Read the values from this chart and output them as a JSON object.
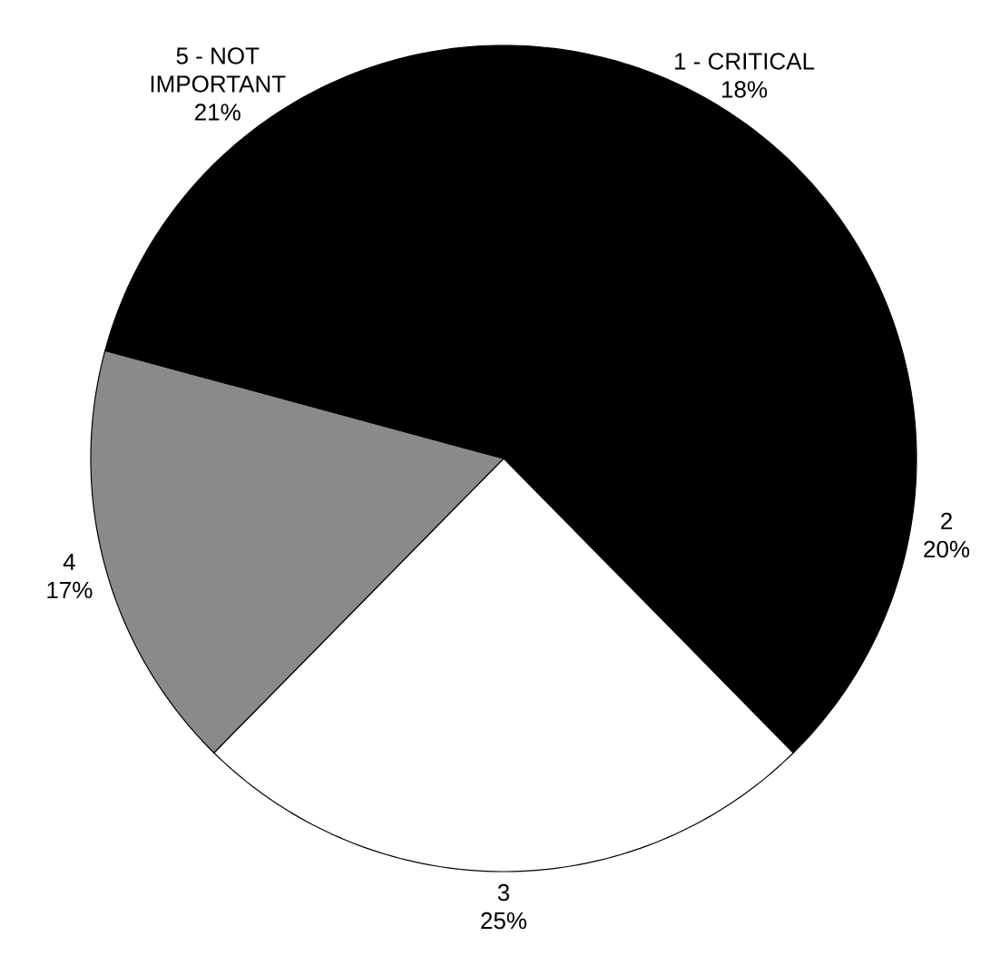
{
  "chart_data": {
    "type": "pie",
    "categories": [
      "1 - CRITICAL",
      "2",
      "3",
      "4",
      "5 - NOT IMPORTANT"
    ],
    "values": [
      18,
      20,
      25,
      17,
      21
    ],
    "value_labels": [
      "18%",
      "20%",
      "25%",
      "17%",
      "21%"
    ],
    "colors": [
      "#000000",
      "#000000",
      "#ffffff",
      "#8a8a8a",
      "#000000"
    ]
  }
}
